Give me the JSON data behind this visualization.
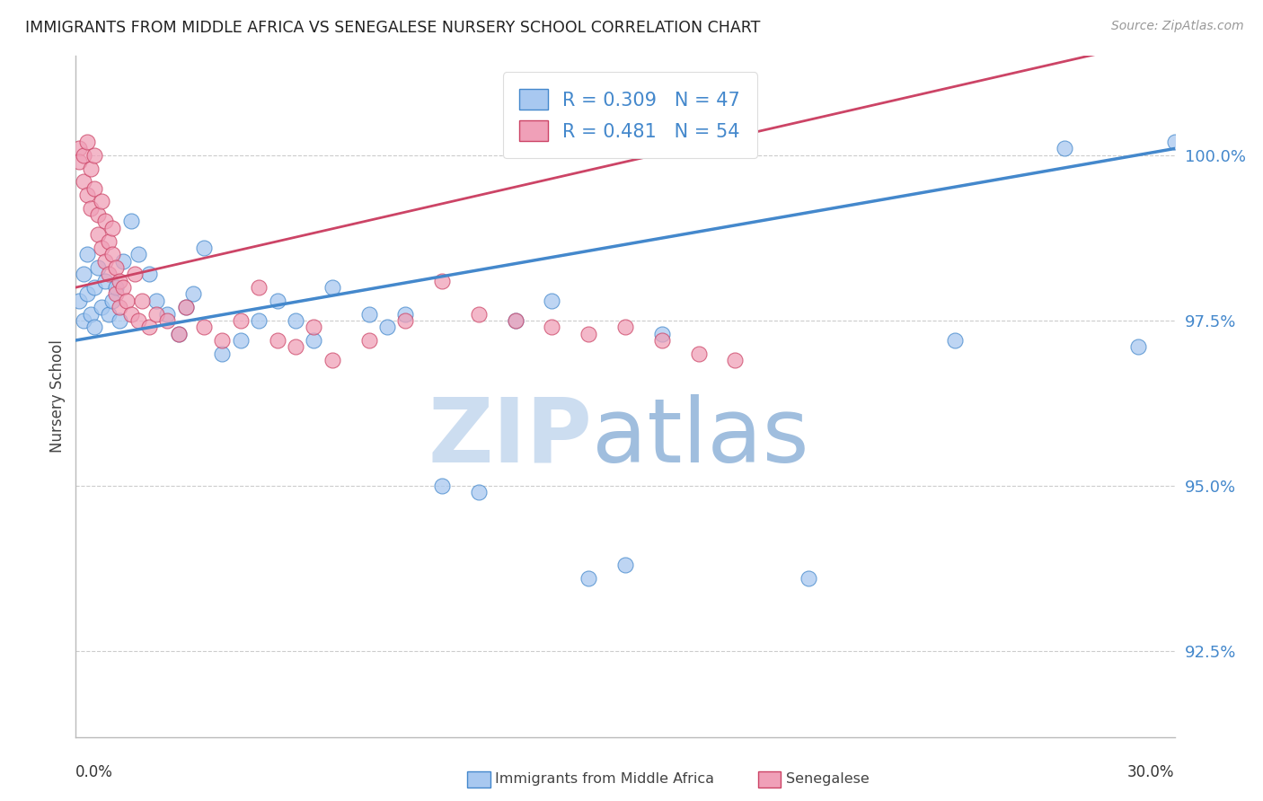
{
  "title": "IMMIGRANTS FROM MIDDLE AFRICA VS SENEGALESE NURSERY SCHOOL CORRELATION CHART",
  "source": "Source: ZipAtlas.com",
  "ylabel": "Nursery School",
  "yticks": [
    92.5,
    95.0,
    97.5,
    100.0
  ],
  "ytick_labels": [
    "92.5%",
    "95.0%",
    "97.5%",
    "100.0%"
  ],
  "xmin": 0.0,
  "xmax": 0.3,
  "ymin": 91.2,
  "ymax": 101.5,
  "blue_R": 0.309,
  "blue_N": 47,
  "pink_R": 0.481,
  "pink_N": 54,
  "blue_color": "#a8c8f0",
  "pink_color": "#f0a0b8",
  "blue_line_color": "#4488cc",
  "pink_line_color": "#cc4466",
  "legend_blue_label": "Immigrants from Middle Africa",
  "legend_pink_label": "Senegalese",
  "blue_x": [
    0.001,
    0.002,
    0.002,
    0.003,
    0.003,
    0.004,
    0.005,
    0.005,
    0.006,
    0.007,
    0.008,
    0.009,
    0.01,
    0.011,
    0.012,
    0.013,
    0.015,
    0.017,
    0.02,
    0.022,
    0.025,
    0.028,
    0.03,
    0.032,
    0.035,
    0.04,
    0.045,
    0.05,
    0.055,
    0.06,
    0.065,
    0.07,
    0.08,
    0.085,
    0.09,
    0.1,
    0.11,
    0.12,
    0.13,
    0.14,
    0.15,
    0.16,
    0.2,
    0.24,
    0.27,
    0.29,
    0.3
  ],
  "blue_y": [
    97.8,
    98.2,
    97.5,
    98.5,
    97.9,
    97.6,
    98.0,
    97.4,
    98.3,
    97.7,
    98.1,
    97.6,
    97.8,
    98.0,
    97.5,
    98.4,
    99.0,
    98.5,
    98.2,
    97.8,
    97.6,
    97.3,
    97.7,
    97.9,
    98.6,
    97.0,
    97.2,
    97.5,
    97.8,
    97.5,
    97.2,
    98.0,
    97.6,
    97.4,
    97.6,
    95.0,
    94.9,
    97.5,
    97.8,
    93.6,
    93.8,
    97.3,
    93.6,
    97.2,
    100.1,
    97.1,
    100.2
  ],
  "pink_x": [
    0.001,
    0.001,
    0.002,
    0.002,
    0.003,
    0.003,
    0.004,
    0.004,
    0.005,
    0.005,
    0.006,
    0.006,
    0.007,
    0.007,
    0.008,
    0.008,
    0.009,
    0.009,
    0.01,
    0.01,
    0.011,
    0.011,
    0.012,
    0.012,
    0.013,
    0.014,
    0.015,
    0.016,
    0.017,
    0.018,
    0.02,
    0.022,
    0.025,
    0.028,
    0.03,
    0.035,
    0.04,
    0.045,
    0.05,
    0.055,
    0.06,
    0.065,
    0.07,
    0.08,
    0.09,
    0.1,
    0.11,
    0.12,
    0.13,
    0.14,
    0.15,
    0.16,
    0.17,
    0.18
  ],
  "pink_y": [
    100.1,
    99.9,
    100.0,
    99.6,
    100.2,
    99.4,
    99.8,
    99.2,
    100.0,
    99.5,
    99.1,
    98.8,
    99.3,
    98.6,
    99.0,
    98.4,
    98.7,
    98.2,
    98.9,
    98.5,
    98.3,
    97.9,
    98.1,
    97.7,
    98.0,
    97.8,
    97.6,
    98.2,
    97.5,
    97.8,
    97.4,
    97.6,
    97.5,
    97.3,
    97.7,
    97.4,
    97.2,
    97.5,
    98.0,
    97.2,
    97.1,
    97.4,
    96.9,
    97.2,
    97.5,
    98.1,
    97.6,
    97.5,
    97.4,
    97.3,
    97.4,
    97.2,
    97.0,
    96.9
  ]
}
